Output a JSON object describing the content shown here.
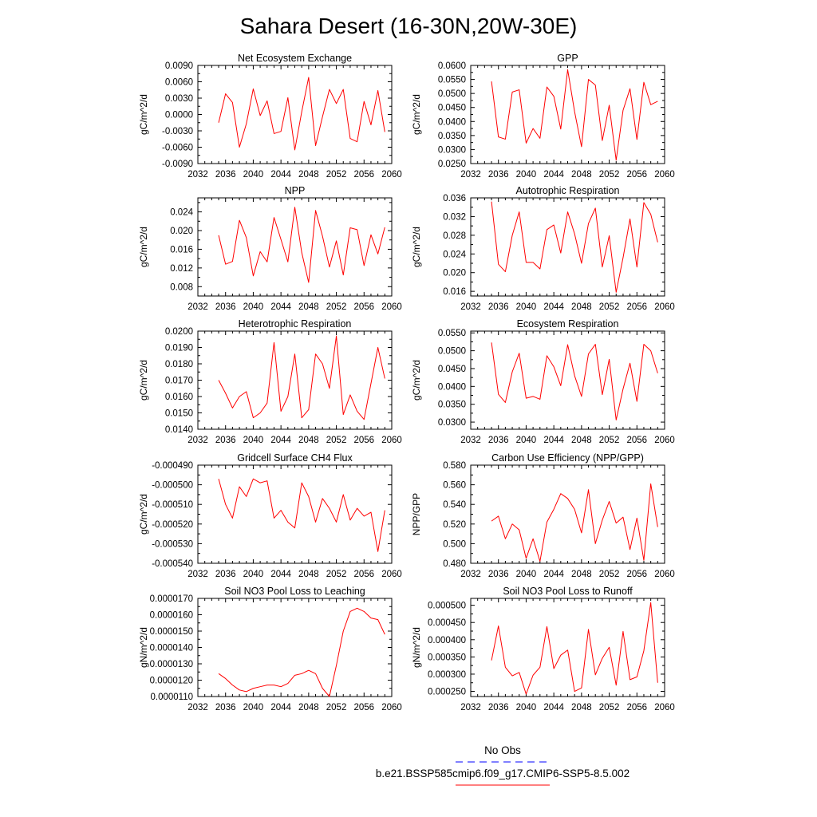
{
  "title": "Sahara Desert (16-30N,20W-30E)",
  "colors": {
    "model": "#ff0000",
    "obs": "#0000ff",
    "axis": "#000000"
  },
  "legend": {
    "entries": [
      {
        "label": "No Obs",
        "style": "dashed",
        "color": "#0000ff"
      },
      {
        "label": "b.e21.BSSP585cmip6.f09_g17.CMIP6-SSP5-8.5.002",
        "style": "solid",
        "color": "#ff0000"
      }
    ]
  },
  "x_axis": {
    "range": [
      2032,
      2060
    ],
    "ticks": [
      "2032",
      "2036",
      "2040",
      "2044",
      "2048",
      "2052",
      "2056",
      "2060"
    ],
    "minor_step": 1
  },
  "chart_data": [
    {
      "type": "line",
      "title": "Net Ecosystem Exchange",
      "ylabel": "gC/m^2/d",
      "ylim": [
        -0.009,
        0.009
      ],
      "yticks": [
        "-0.0090",
        "-0.0060",
        "-0.0030",
        "0.0000",
        "0.0030",
        "0.0060",
        "0.0090"
      ],
      "x": [
        2035,
        2036,
        2037,
        2038,
        2039,
        2040,
        2041,
        2042,
        2043,
        2044,
        2045,
        2046,
        2047,
        2048,
        2049,
        2050,
        2051,
        2052,
        2053,
        2054,
        2055,
        2056,
        2057,
        2058,
        2059
      ],
      "values": [
        -0.0015,
        0.0038,
        0.0022,
        -0.006,
        -0.0017,
        0.0047,
        -0.0002,
        0.0025,
        -0.0035,
        -0.0031,
        0.0031,
        -0.0065,
        0.0005,
        0.0068,
        -0.0057,
        -0.0004,
        0.0046,
        0.002,
        0.0046,
        -0.0044,
        -0.005,
        0.0024,
        -0.0019,
        0.0044,
        -0.0032
      ]
    },
    {
      "type": "line",
      "title": "GPP",
      "ylabel": "gC/m^2/d",
      "ylim": [
        0.025,
        0.06
      ],
      "yticks": [
        "0.0250",
        "0.0300",
        "0.0350",
        "0.0400",
        "0.0450",
        "0.0500",
        "0.0550",
        "0.0600"
      ],
      "x": [
        2035,
        2036,
        2037,
        2038,
        2039,
        2040,
        2041,
        2042,
        2043,
        2044,
        2045,
        2046,
        2047,
        2048,
        2049,
        2050,
        2051,
        2052,
        2053,
        2054,
        2055,
        2056,
        2057,
        2058,
        2059
      ],
      "values": [
        0.0543,
        0.0345,
        0.0337,
        0.0505,
        0.0513,
        0.0323,
        0.0375,
        0.034,
        0.0523,
        0.049,
        0.0373,
        0.0585,
        0.0435,
        0.031,
        0.055,
        0.053,
        0.0332,
        0.0458,
        0.0262,
        0.044,
        0.0517,
        0.0336,
        0.054,
        0.046,
        0.0472
      ]
    },
    {
      "type": "line",
      "title": "NPP",
      "ylabel": "gC/m^2/d",
      "ylim": [
        0.006,
        0.027
      ],
      "yticks": [
        "0.008",
        "0.012",
        "0.016",
        "0.020",
        "0.024"
      ],
      "x": [
        2035,
        2036,
        2037,
        2038,
        2039,
        2040,
        2041,
        2042,
        2043,
        2044,
        2045,
        2046,
        2047,
        2048,
        2049,
        2050,
        2051,
        2052,
        2053,
        2054,
        2055,
        2056,
        2057,
        2058,
        2059
      ],
      "values": [
        0.019,
        0.0128,
        0.0134,
        0.0222,
        0.0185,
        0.0103,
        0.0155,
        0.0133,
        0.0228,
        0.0181,
        0.0133,
        0.025,
        0.0153,
        0.0089,
        0.0243,
        0.0188,
        0.0122,
        0.0178,
        0.0105,
        0.0206,
        0.0202,
        0.0125,
        0.0191,
        0.015,
        0.0207
      ]
    },
    {
      "type": "line",
      "title": "Autotrophic Respiration",
      "ylabel": "gC/m^2/d",
      "ylim": [
        0.015,
        0.036
      ],
      "yticks": [
        "0.016",
        "0.020",
        "0.024",
        "0.028",
        "0.032",
        "0.036"
      ],
      "x": [
        2035,
        2036,
        2037,
        2038,
        2039,
        2040,
        2041,
        2042,
        2043,
        2044,
        2045,
        2046,
        2047,
        2048,
        2049,
        2050,
        2051,
        2052,
        2053,
        2054,
        2055,
        2056,
        2057,
        2058,
        2059
      ],
      "values": [
        0.0352,
        0.0218,
        0.0202,
        0.028,
        0.033,
        0.0222,
        0.0222,
        0.0208,
        0.0292,
        0.0302,
        0.0242,
        0.033,
        0.0283,
        0.022,
        0.0305,
        0.0338,
        0.0212,
        0.0279,
        0.0158,
        0.0232,
        0.0315,
        0.0212,
        0.035,
        0.0325,
        0.0265
      ]
    },
    {
      "type": "line",
      "title": "Heterotrophic Respiration",
      "ylabel": "gC/m^2/d",
      "ylim": [
        0.014,
        0.02
      ],
      "yticks": [
        "0.0140",
        "0.0150",
        "0.0160",
        "0.0170",
        "0.0180",
        "0.0190",
        "0.0200"
      ],
      "x": [
        2035,
        2036,
        2037,
        2038,
        2039,
        2040,
        2041,
        2042,
        2043,
        2044,
        2045,
        2046,
        2047,
        2048,
        2049,
        2050,
        2051,
        2052,
        2053,
        2054,
        2055,
        2056,
        2057,
        2058,
        2059
      ],
      "values": [
        0.017,
        0.0162,
        0.0153,
        0.016,
        0.0163,
        0.0147,
        0.015,
        0.0156,
        0.0193,
        0.0151,
        0.016,
        0.0186,
        0.0147,
        0.0152,
        0.0186,
        0.018,
        0.0165,
        0.0197,
        0.0149,
        0.0161,
        0.0151,
        0.0146,
        0.0168,
        0.019,
        0.0171
      ]
    },
    {
      "type": "line",
      "title": "Ecosystem Respiration",
      "ylabel": "gC/m^2/d",
      "ylim": [
        0.028,
        0.0555
      ],
      "yticks": [
        "0.0300",
        "0.0350",
        "0.0400",
        "0.0450",
        "0.0500",
        "0.0550"
      ],
      "x": [
        2035,
        2036,
        2037,
        2038,
        2039,
        2040,
        2041,
        2042,
        2043,
        2044,
        2045,
        2046,
        2047,
        2048,
        2049,
        2050,
        2051,
        2052,
        2053,
        2054,
        2055,
        2056,
        2057,
        2058,
        2059
      ],
      "values": [
        0.0523,
        0.0378,
        0.0355,
        0.0441,
        0.0493,
        0.0367,
        0.0372,
        0.0364,
        0.0486,
        0.0455,
        0.0402,
        0.0517,
        0.043,
        0.0372,
        0.0491,
        0.0518,
        0.0377,
        0.0476,
        0.0306,
        0.0393,
        0.0465,
        0.0358,
        0.0518,
        0.05,
        0.0437
      ]
    },
    {
      "type": "line",
      "title": "Gridcell Surface CH4 Flux",
      "ylabel": "gC/m^2/d",
      "ylim": [
        -0.00054,
        -0.00049
      ],
      "yticks": [
        "-0.000540",
        "-0.000530",
        "-0.000520",
        "-0.000510",
        "-0.000500",
        "-0.000490"
      ],
      "x": [
        2035,
        2036,
        2037,
        2038,
        2039,
        2040,
        2041,
        2042,
        2043,
        2044,
        2045,
        2046,
        2047,
        2048,
        2049,
        2050,
        2051,
        2052,
        2053,
        2054,
        2055,
        2056,
        2057,
        2058,
        2059
      ],
      "values": [
        -0.000497,
        -0.00051,
        -0.000517,
        -0.000501,
        -0.000506,
        -0.000497,
        -0.000499,
        -0.000498,
        -0.000517,
        -0.000513,
        -0.000519,
        -0.000522,
        -0.000499,
        -0.000506,
        -0.000519,
        -0.000507,
        -0.000512,
        -0.000519,
        -0.000505,
        -0.000518,
        -0.000512,
        -0.000516,
        -0.000514,
        -0.000534,
        -0.000513
      ]
    },
    {
      "type": "line",
      "title": "Carbon Use Efficiency (NPP/GPP)",
      "ylabel": "NPP/GPP",
      "ylim": [
        0.48,
        0.58
      ],
      "yticks": [
        "0.480",
        "0.500",
        "0.520",
        "0.540",
        "0.560",
        "0.580"
      ],
      "x": [
        2035,
        2036,
        2037,
        2038,
        2039,
        2040,
        2041,
        2042,
        2043,
        2044,
        2045,
        2046,
        2047,
        2048,
        2049,
        2050,
        2051,
        2052,
        2053,
        2054,
        2055,
        2056,
        2057,
        2058,
        2059
      ],
      "values": [
        0.523,
        0.528,
        0.505,
        0.52,
        0.514,
        0.485,
        0.505,
        0.482,
        0.522,
        0.535,
        0.551,
        0.546,
        0.535,
        0.511,
        0.555,
        0.5,
        0.524,
        0.543,
        0.521,
        0.527,
        0.494,
        0.526,
        0.483,
        0.561,
        0.517
      ]
    },
    {
      "type": "line",
      "title": "Soil NO3 Pool Loss to Leaching",
      "ylabel": "gN/m^2/d",
      "ylim": [
        1.1e-05,
        1.7e-05
      ],
      "yticks": [
        "0.0000110",
        "0.0000120",
        "0.0000130",
        "0.0000140",
        "0.0000150",
        "0.0000160",
        "0.0000170"
      ],
      "x": [
        2035,
        2036,
        2037,
        2038,
        2039,
        2040,
        2041,
        2042,
        2043,
        2044,
        2045,
        2046,
        2047,
        2048,
        2049,
        2050,
        2051,
        2052,
        2053,
        2054,
        2055,
        2056,
        2057,
        2058,
        2059
      ],
      "values": [
        1.24e-05,
        1.21e-05,
        1.17e-05,
        1.14e-05,
        1.13e-05,
        1.15e-05,
        1.16e-05,
        1.17e-05,
        1.17e-05,
        1.16e-05,
        1.18e-05,
        1.23e-05,
        1.24e-05,
        1.26e-05,
        1.24e-05,
        1.15e-05,
        1.1e-05,
        1.29e-05,
        1.5e-05,
        1.62e-05,
        1.64e-05,
        1.62e-05,
        1.58e-05,
        1.57e-05,
        1.48e-05
      ]
    },
    {
      "type": "line",
      "title": "Soil NO3 Pool Loss to Runoff",
      "ylabel": "gN/m^2/d",
      "ylim": [
        0.000235,
        0.00052
      ],
      "yticks": [
        "0.000250",
        "0.000300",
        "0.000350",
        "0.000400",
        "0.000450",
        "0.000500"
      ],
      "x": [
        2035,
        2036,
        2037,
        2038,
        2039,
        2040,
        2041,
        2042,
        2043,
        2044,
        2045,
        2046,
        2047,
        2048,
        2049,
        2050,
        2051,
        2052,
        2053,
        2054,
        2055,
        2056,
        2057,
        2058,
        2059
      ],
      "values": [
        0.00034,
        0.00044,
        0.00032,
        0.000295,
        0.000305,
        0.000242,
        0.000297,
        0.00032,
        0.000438,
        0.000316,
        0.000355,
        0.00037,
        0.00025,
        0.00026,
        0.00043,
        0.000298,
        0.000346,
        0.000378,
        0.000268,
        0.000424,
        0.000284,
        0.000292,
        0.000368,
        0.000508,
        0.000275
      ]
    }
  ]
}
